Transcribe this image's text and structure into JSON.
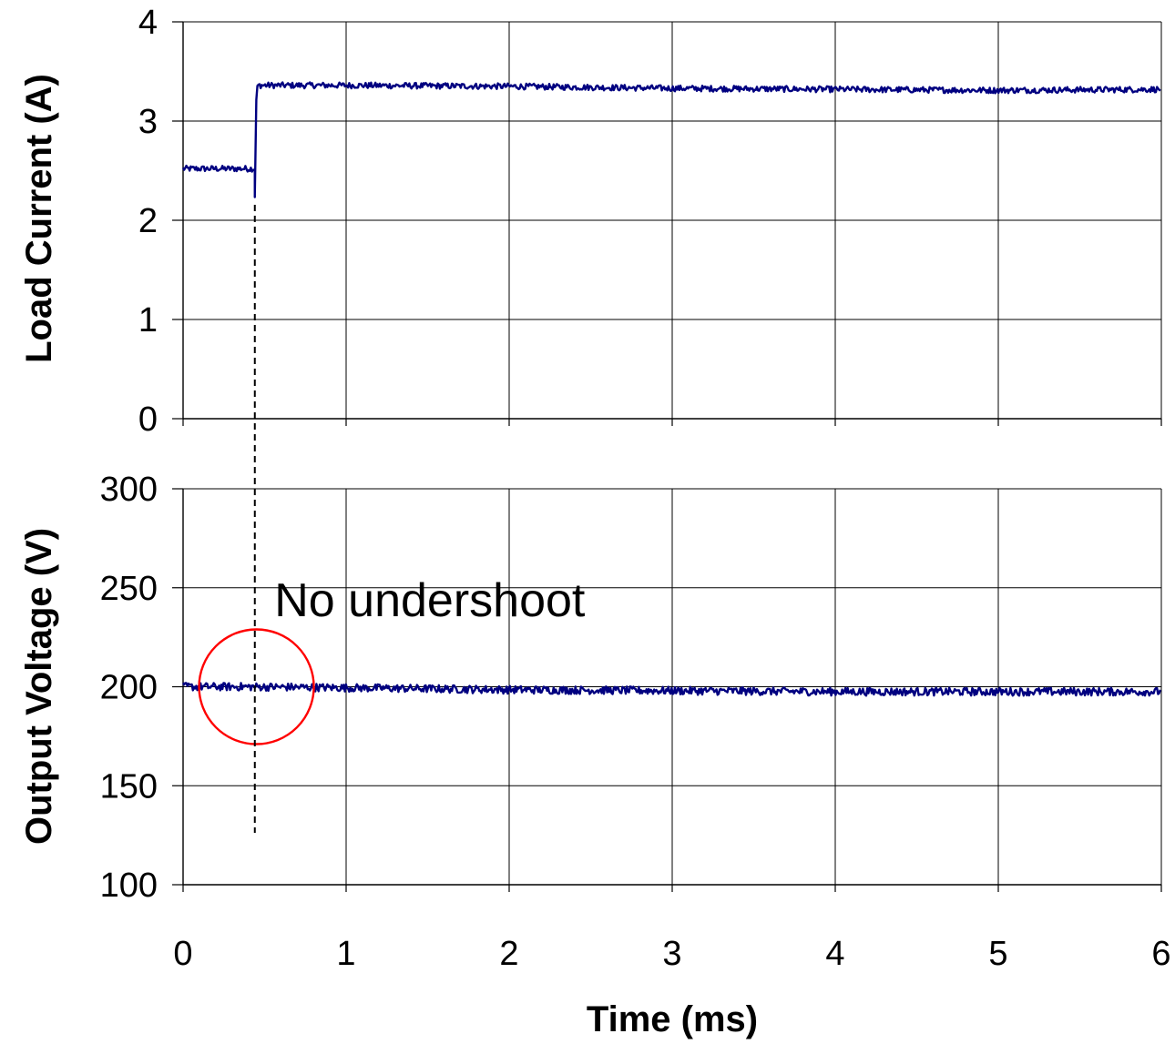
{
  "chart_data": [
    {
      "type": "line",
      "ylabel": "Load Current (A)",
      "xlim": [
        0,
        6
      ],
      "ylim": [
        0,
        4
      ],
      "xticks": [
        0,
        1,
        2,
        3,
        4,
        5,
        6
      ],
      "yticks": [
        0,
        1,
        2,
        3,
        4
      ],
      "x_tick_labels_shown": false,
      "grid": true,
      "series": [
        {
          "color": "#000080",
          "x": [
            0,
            0.44,
            0.44,
            0.45,
            0.46,
            0.5,
            1,
            2,
            3,
            4,
            5,
            6
          ],
          "y": [
            2.52,
            2.52,
            2.25,
            3.3,
            3.36,
            3.36,
            3.36,
            3.35,
            3.33,
            3.32,
            3.31,
            3.32
          ],
          "noise_amplitude": 0.03
        }
      ]
    },
    {
      "type": "line",
      "ylabel": "Output Voltage (V)",
      "xlabel": "Time (ms)",
      "xlim": [
        0,
        6
      ],
      "ylim": [
        100,
        300
      ],
      "xticks": [
        0,
        1,
        2,
        3,
        4,
        5,
        6
      ],
      "yticks": [
        100,
        150,
        200,
        250,
        300
      ],
      "grid": true,
      "series": [
        {
          "color": "#000080",
          "x": [
            0,
            0.44,
            1,
            2,
            3,
            4,
            5,
            6
          ],
          "y": [
            200,
            200,
            199.5,
            198.5,
            198,
            197.5,
            197.5,
            197.5
          ],
          "noise_amplitude": 2
        }
      ],
      "annotations": [
        {
          "text": "No undershoot",
          "x": 0.56,
          "y": 244
        },
        {
          "type": "circle",
          "color": "#ff0000",
          "cx": 0.45,
          "cy": 200
        },
        {
          "type": "dashed-vline",
          "color": "#000000",
          "x": 0.44
        }
      ]
    }
  ]
}
